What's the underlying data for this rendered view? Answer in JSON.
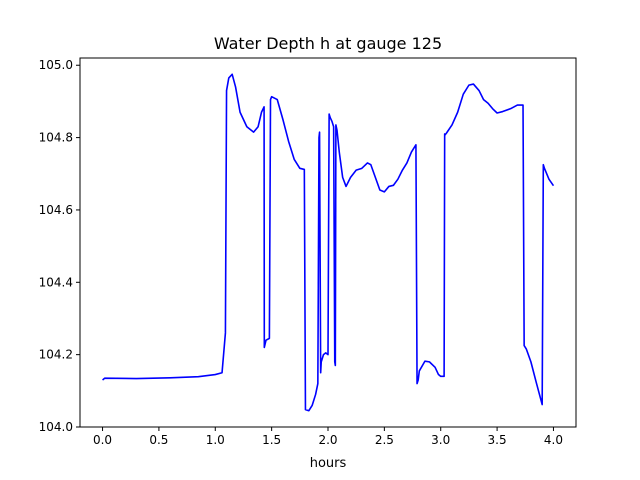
{
  "chart_data": {
    "type": "line",
    "title": "Water Depth h at gauge 125",
    "xlabel": "hours",
    "ylabel": "",
    "xlim": [
      -0.2,
      4.2
    ],
    "ylim": [
      104.0,
      105.02
    ],
    "grid": false,
    "xticks": [
      0.0,
      0.5,
      1.0,
      1.5,
      2.0,
      2.5,
      3.0,
      3.5,
      4.0
    ],
    "xtick_labels": [
      "0.0",
      "0.5",
      "1.0",
      "1.5",
      "2.0",
      "2.5",
      "3.0",
      "3.5",
      "4.0"
    ],
    "yticks": [
      104.0,
      104.2,
      104.4,
      104.6,
      104.8,
      105.0
    ],
    "ytick_labels": [
      "104.0",
      "104.2",
      "104.4",
      "104.6",
      "104.8",
      "105.0"
    ],
    "series": [
      {
        "color": "#0000ff",
        "x": [
          0.0,
          0.02,
          0.3,
          0.6,
          0.85,
          1.0,
          1.06,
          1.09,
          1.1,
          1.12,
          1.15,
          1.18,
          1.22,
          1.28,
          1.34,
          1.38,
          1.41,
          1.433,
          1.435,
          1.45,
          1.48,
          1.49,
          1.5,
          1.55,
          1.6,
          1.65,
          1.7,
          1.75,
          1.79,
          1.8,
          1.83,
          1.86,
          1.89,
          1.91,
          1.92,
          1.925,
          1.935,
          1.94,
          1.96,
          1.98,
          2.0,
          2.01,
          2.02,
          2.035,
          2.05,
          2.06,
          2.065,
          2.07,
          2.08,
          2.1,
          2.13,
          2.16,
          2.2,
          2.25,
          2.3,
          2.35,
          2.38,
          2.42,
          2.46,
          2.5,
          2.54,
          2.58,
          2.62,
          2.66,
          2.7,
          2.74,
          2.78,
          2.79,
          2.8,
          2.81,
          2.86,
          2.9,
          2.95,
          2.98,
          3.0,
          3.03,
          3.035,
          3.04,
          3.05,
          3.1,
          3.15,
          3.2,
          3.25,
          3.29,
          3.34,
          3.38,
          3.42,
          3.46,
          3.5,
          3.55,
          3.62,
          3.68,
          3.72,
          3.73,
          3.74,
          3.76,
          3.8,
          3.85,
          3.9,
          3.91,
          3.92,
          3.96,
          4.0
        ],
        "y": [
          104.13,
          104.135,
          104.134,
          104.136,
          104.139,
          104.145,
          104.15,
          104.26,
          104.93,
          104.965,
          104.975,
          104.94,
          104.87,
          104.83,
          104.815,
          104.83,
          104.87,
          104.885,
          104.22,
          104.24,
          104.245,
          104.905,
          104.913,
          104.905,
          104.85,
          104.79,
          104.74,
          104.715,
          104.712,
          104.048,
          104.045,
          104.06,
          104.09,
          104.12,
          104.8,
          104.815,
          104.15,
          104.18,
          104.2,
          104.205,
          104.2,
          104.865,
          104.855,
          104.845,
          104.83,
          104.18,
          104.17,
          104.835,
          104.82,
          104.76,
          104.69,
          104.665,
          104.69,
          104.71,
          104.715,
          104.73,
          104.725,
          104.69,
          104.655,
          104.65,
          104.665,
          104.668,
          104.685,
          104.71,
          104.73,
          104.76,
          104.78,
          104.12,
          104.13,
          104.155,
          104.182,
          104.18,
          104.165,
          104.145,
          104.14,
          104.14,
          104.81,
          104.808,
          104.812,
          104.835,
          104.87,
          104.92,
          104.945,
          104.948,
          104.93,
          104.905,
          104.895,
          104.88,
          104.868,
          104.872,
          104.88,
          104.89,
          104.89,
          104.89,
          104.225,
          104.215,
          104.18,
          104.12,
          104.062,
          104.725,
          104.715,
          104.685,
          104.667
        ]
      }
    ]
  }
}
